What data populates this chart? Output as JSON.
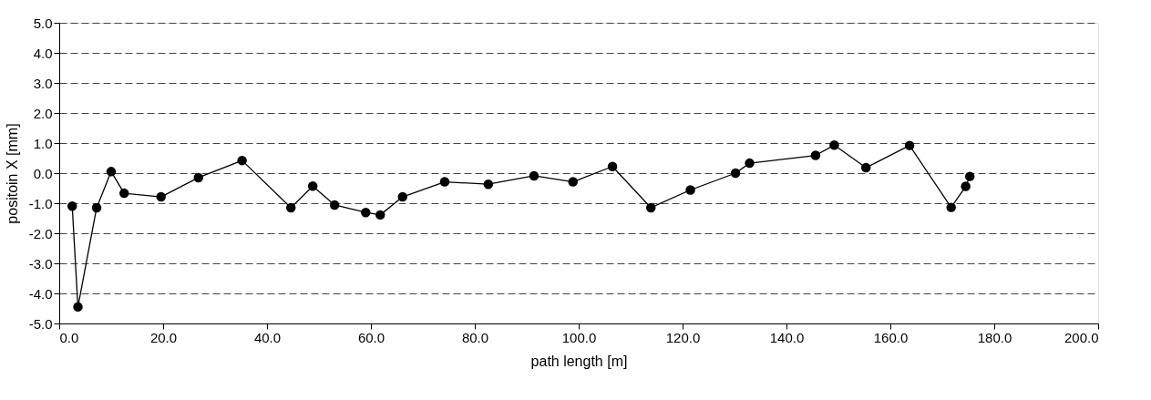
{
  "chart_data": {
    "type": "line",
    "xlabel": "path length [m]",
    "ylabel": "positoin X [mm]",
    "x": [
      2.5,
      3.6,
      7.2,
      10.0,
      12.5,
      19.6,
      26.8,
      35.2,
      44.6,
      48.8,
      53.0,
      59.0,
      61.8,
      66.1,
      74.2,
      82.6,
      91.4,
      98.9,
      106.5,
      113.9,
      121.5,
      130.2,
      132.9,
      145.6,
      149.2,
      155.3,
      163.7,
      171.7,
      174.5,
      175.3
    ],
    "series": [
      {
        "color": "#000000",
        "values": [
          -1.1,
          -4.45,
          -1.15,
          0.05,
          -0.67,
          -0.79,
          -0.15,
          0.42,
          -1.15,
          -0.43,
          -1.06,
          -1.31,
          -1.39,
          -0.79,
          -0.29,
          -0.37,
          -0.09,
          -0.29,
          0.22,
          -1.15,
          -0.56,
          0.0,
          0.33,
          0.59,
          0.93,
          0.18,
          0.92,
          -1.14,
          -0.44,
          -0.11
        ]
      }
    ],
    "xlim": [
      0,
      200
    ],
    "xticks": [
      {
        "value": 0,
        "label": "0.0"
      },
      {
        "value": 20,
        "label": "20.0"
      },
      {
        "value": 40,
        "label": "40.0"
      },
      {
        "value": 60,
        "label": "60.0"
      },
      {
        "value": 80,
        "label": "80.0"
      },
      {
        "value": 100,
        "label": "100.0"
      },
      {
        "value": 120,
        "label": "120.0"
      },
      {
        "value": 140,
        "label": "140.0"
      },
      {
        "value": 160,
        "label": "160.0"
      },
      {
        "value": 180,
        "label": "180.0"
      },
      {
        "value": 200,
        "label": "200.0"
      }
    ],
    "ylim": [
      -5,
      5
    ],
    "yticks": [
      {
        "value": -5,
        "label": "-5.0"
      },
      {
        "value": -4,
        "label": "-4.0"
      },
      {
        "value": -3,
        "label": "-3.0"
      },
      {
        "value": -2,
        "label": "-2.0"
      },
      {
        "value": -1,
        "label": "-1.0"
      },
      {
        "value": 0,
        "label": "0.0"
      },
      {
        "value": 1,
        "label": "1.0"
      },
      {
        "value": 2,
        "label": "2.0"
      },
      {
        "value": 3,
        "label": "3.0"
      },
      {
        "value": 4,
        "label": "4.0"
      },
      {
        "value": 5,
        "label": "5.0"
      }
    ],
    "grid": "y",
    "marker": "circle",
    "line_style": "solid"
  }
}
